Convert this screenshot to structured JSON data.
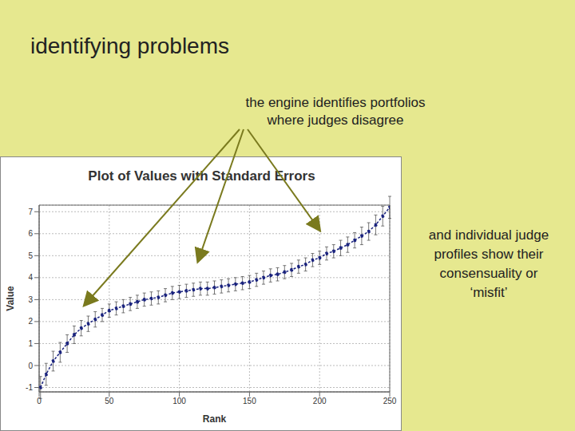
{
  "heading": "identifying problems",
  "chart_data": {
    "type": "line",
    "title": "Plot of Values with Standard Errors",
    "x_label": "Rank",
    "y_label": "Value",
    "annotations": [
      [
        "the engine identifies portfolios",
        "where judges disagree"
      ],
      [
        "and individual judge",
        "profiles show their",
        "consensuality or",
        "‘misfit’"
      ]
    ],
    "x": [
      1,
      5,
      10,
      15,
      20,
      25,
      30,
      35,
      40,
      45,
      50,
      55,
      60,
      65,
      70,
      75,
      80,
      85,
      90,
      95,
      100,
      105,
      110,
      115,
      120,
      125,
      130,
      135,
      140,
      145,
      150,
      155,
      160,
      165,
      170,
      175,
      180,
      185,
      190,
      195,
      200,
      205,
      210,
      215,
      220,
      225,
      230,
      235,
      240,
      245,
      250
    ],
    "values": [
      -1.0,
      -0.4,
      0.2,
      0.6,
      1.0,
      1.4,
      1.7,
      1.9,
      2.1,
      2.3,
      2.5,
      2.6,
      2.7,
      2.8,
      2.9,
      3.0,
      3.05,
      3.1,
      3.2,
      3.3,
      3.35,
      3.4,
      3.45,
      3.5,
      3.5,
      3.55,
      3.6,
      3.65,
      3.7,
      3.75,
      3.8,
      3.9,
      4.0,
      4.1,
      4.15,
      4.25,
      4.35,
      4.5,
      4.6,
      4.8,
      4.9,
      5.1,
      5.2,
      5.35,
      5.5,
      5.7,
      5.9,
      6.1,
      6.4,
      6.8,
      7.2
    ],
    "errors": [
      0.5,
      0.5,
      0.45,
      0.45,
      0.4,
      0.4,
      0.35,
      0.35,
      0.35,
      0.3,
      0.3,
      0.3,
      0.3,
      0.3,
      0.3,
      0.3,
      0.3,
      0.3,
      0.3,
      0.3,
      0.3,
      0.3,
      0.3,
      0.3,
      0.3,
      0.3,
      0.3,
      0.3,
      0.3,
      0.3,
      0.3,
      0.3,
      0.3,
      0.3,
      0.3,
      0.3,
      0.3,
      0.3,
      0.3,
      0.3,
      0.3,
      0.3,
      0.3,
      0.35,
      0.35,
      0.35,
      0.4,
      0.4,
      0.45,
      0.45,
      0.5
    ],
    "color": "#1a237e",
    "marker": "circle",
    "xlim": [
      0,
      250
    ],
    "xticks": [
      0,
      50,
      100,
      150,
      200,
      250
    ],
    "ylim": [
      -1.2,
      7.3
    ],
    "yticks": [
      -1,
      0,
      1,
      2,
      3,
      4,
      5,
      6,
      7
    ],
    "grid": true
  }
}
